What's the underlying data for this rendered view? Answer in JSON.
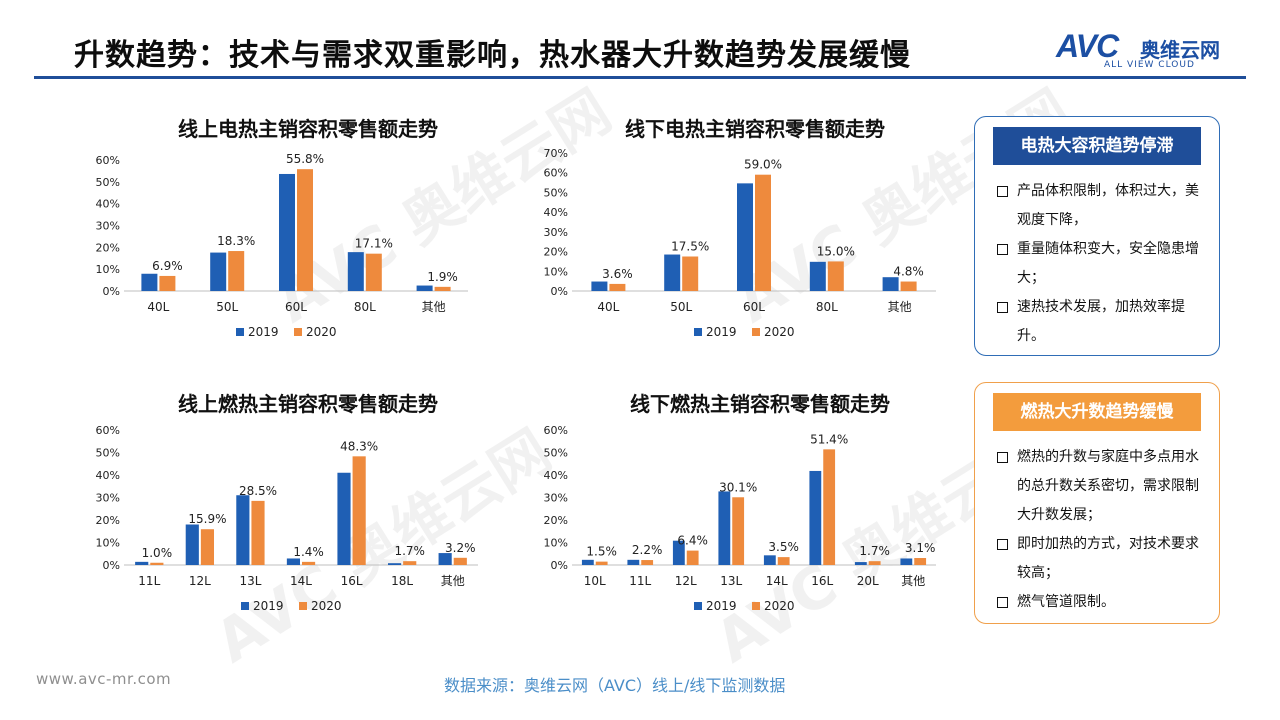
{
  "header": {
    "title": "升数趋势：技术与需求双重影响，热水器大升数趋势发展缓慢",
    "logo_mark": "AVC",
    "logo_cn": "奥维云网",
    "logo_en": "ALL VIEW CLOUD"
  },
  "watermark": {
    "mark": "AVC",
    "cn": "奥维云网",
    "en": "ALL VIEW CLOUD"
  },
  "colors": {
    "series_2019": "#1f5fb4",
    "series_2020": "#ee8a3d",
    "axis": "#bfbfbf",
    "title_rule": "#1f4e99"
  },
  "chart_data": [
    {
      "type": "bar",
      "title": "线上电热主销容积零售额走势",
      "categories": [
        "40L",
        "50L",
        "60L",
        "80L",
        "其他"
      ],
      "series": [
        {
          "name": "2019",
          "values": [
            7.9,
            17.6,
            53.6,
            17.8,
            2.5
          ]
        },
        {
          "name": "2020",
          "values": [
            6.9,
            18.3,
            55.8,
            17.1,
            1.9
          ]
        }
      ],
      "data_labels": [
        "6.9%",
        "18.3%",
        "55.8%",
        "17.1%",
        "1.9%"
      ],
      "y_ticks": [
        "0%",
        "10%",
        "20%",
        "30%",
        "40%",
        "50%",
        "60%"
      ],
      "ylim": [
        0,
        60
      ],
      "legend": "bottom",
      "grid": false
    },
    {
      "type": "bar",
      "title": "线下电热主销容积零售额走势",
      "categories": [
        "40L",
        "50L",
        "60L",
        "80L",
        "其他"
      ],
      "series": [
        {
          "name": "2019",
          "values": [
            4.8,
            18.5,
            54.6,
            14.8,
            7.0
          ]
        },
        {
          "name": "2020",
          "values": [
            3.6,
            17.5,
            59.0,
            15.0,
            4.8
          ]
        }
      ],
      "data_labels": [
        "3.6%",
        "17.5%",
        "59.0%",
        "15.0%",
        "4.8%"
      ],
      "y_ticks": [
        "0%",
        "10%",
        "20%",
        "30%",
        "40%",
        "50%",
        "60%",
        "70%"
      ],
      "ylim": [
        0,
        70
      ],
      "legend": "bottom",
      "grid": false
    },
    {
      "type": "bar",
      "title": "线上燃热主销容积零售额走势",
      "categories": [
        "11L",
        "12L",
        "13L",
        "14L",
        "16L",
        "18L",
        "其他"
      ],
      "series": [
        {
          "name": "2019",
          "values": [
            1.4,
            18.0,
            31.0,
            2.9,
            41.0,
            0.8,
            5.3
          ]
        },
        {
          "name": "2020",
          "values": [
            1.0,
            15.9,
            28.5,
            1.4,
            48.3,
            1.7,
            3.2
          ]
        }
      ],
      "data_labels": [
        "1.0%",
        "15.9%",
        "28.5%",
        "1.4%",
        "48.3%",
        "1.7%",
        "3.2%"
      ],
      "y_ticks": [
        "0%",
        "10%",
        "20%",
        "30%",
        "40%",
        "50%",
        "60%"
      ],
      "ylim": [
        0,
        60
      ],
      "legend": "bottom",
      "grid": false
    },
    {
      "type": "bar",
      "title": "线下燃热主销容积零售额走势",
      "categories": [
        "10L",
        "11L",
        "12L",
        "13L",
        "14L",
        "16L",
        "20L",
        "其他"
      ],
      "series": [
        {
          "name": "2019",
          "values": [
            2.3,
            2.3,
            10.8,
            32.7,
            4.3,
            41.8,
            1.3,
            2.9
          ]
        },
        {
          "name": "2020",
          "values": [
            1.5,
            2.2,
            6.4,
            30.1,
            3.5,
            51.4,
            1.7,
            3.1
          ]
        }
      ],
      "data_labels": [
        "1.5%",
        "2.2%",
        "6.4%",
        "30.1%",
        "3.5%",
        "51.4%",
        "1.7%",
        "3.1%"
      ],
      "y_ticks": [
        "0%",
        "10%",
        "20%",
        "30%",
        "40%",
        "50%",
        "60%"
      ],
      "ylim": [
        0,
        60
      ],
      "legend": "bottom",
      "grid": false
    }
  ],
  "panels": {
    "electric": {
      "heading": "电热大容积趋势停滞",
      "items": [
        "产品体积限制，体积过大，美观度下降，",
        "重量随体积变大，安全隐患增大；",
        "速热技术发展，加热效率提升。"
      ]
    },
    "gas": {
      "heading": "燃热大升数趋势缓慢",
      "items": [
        "燃热的升数与家庭中多点用水的总升数关系密切，需求限制大升数发展；",
        "即时加热的方式，对技术要求较高；",
        "燃气管道限制。"
      ]
    }
  },
  "footer": {
    "url": "www.avc-mr.com",
    "source": "数据来源：奥维云网（AVC）线上/线下监测数据"
  }
}
